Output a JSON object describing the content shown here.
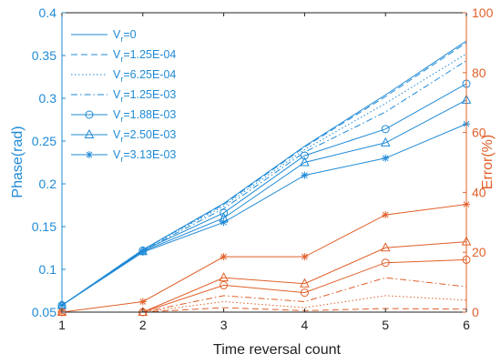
{
  "chart_data": {
    "type": "line",
    "title": "",
    "xlabel": "Time reversal count",
    "ylabel_left": "Phase(rad)",
    "ylabel_right": "Error(%)",
    "x": [
      1,
      2,
      3,
      4,
      5,
      6
    ],
    "xlim": [
      1,
      6
    ],
    "ylim_left": [
      0.05,
      0.4
    ],
    "ylim_right": [
      0,
      100
    ],
    "x_ticks": [
      "1",
      "2",
      "3",
      "4",
      "5",
      "6"
    ],
    "y_left_ticks": [
      "0.05",
      "0.1",
      "0.15",
      "0.2",
      "0.25",
      "0.3",
      "0.35",
      "0.4"
    ],
    "y_right_ticks": [
      "0",
      "20",
      "40",
      "60",
      "80",
      "100"
    ],
    "legend_position": "top-left",
    "colors": {
      "phase": "#1f8ad6",
      "error": "#e0602a",
      "axis": "#222222"
    },
    "series": [
      {
        "legend_main": "V",
        "legend_sub": "r",
        "legend_value": "=0",
        "dash": "solid",
        "marker": "none",
        "phase": [
          0.058,
          0.123,
          0.177,
          0.244,
          0.304,
          0.367
        ],
        "error": [
          0,
          0,
          0,
          0,
          0,
          0
        ]
      },
      {
        "legend_main": "V",
        "legend_sub": "r",
        "legend_value": "=1.25E-04",
        "dash": "dashed",
        "marker": "none",
        "phase": [
          0.058,
          0.123,
          0.176,
          0.243,
          0.302,
          0.365
        ],
        "error": [
          0,
          0,
          1.5,
          0.5,
          1.2,
          1.0
        ]
      },
      {
        "legend_main": "V",
        "legend_sub": "r",
        "legend_value": "=6.25E-04",
        "dash": "dotted",
        "marker": "none",
        "phase": [
          0.058,
          0.123,
          0.174,
          0.24,
          0.294,
          0.352
        ],
        "error": [
          0,
          0,
          3.5,
          1.5,
          5.5,
          4.0
        ]
      },
      {
        "legend_main": "V",
        "legend_sub": "r",
        "legend_value": "=1.25E-03",
        "dash": "dashdot",
        "marker": "none",
        "phase": [
          0.058,
          0.122,
          0.171,
          0.237,
          0.284,
          0.344
        ],
        "error": [
          0,
          0,
          5.5,
          3.5,
          11.5,
          8.5
        ]
      },
      {
        "legend_main": "V",
        "legend_sub": "r",
        "legend_value": "=1.88E-03",
        "dash": "solid",
        "marker": "circle",
        "phase": [
          0.058,
          0.122,
          0.166,
          0.233,
          0.264,
          0.317
        ],
        "error": [
          0,
          0,
          9.0,
          6.5,
          16.5,
          17.5
        ]
      },
      {
        "legend_main": "V",
        "legend_sub": "r",
        "legend_value": "=2.50E-03",
        "dash": "solid",
        "marker": "triangle",
        "phase": [
          0.058,
          0.121,
          0.16,
          0.225,
          0.248,
          0.298
        ],
        "error": [
          0,
          0,
          11.5,
          9.5,
          21.5,
          23.5
        ]
      },
      {
        "legend_main": "V",
        "legend_sub": "r",
        "legend_value": "=3.13E-03",
        "dash": "solid",
        "marker": "star",
        "phase": [
          0.058,
          0.12,
          0.155,
          0.21,
          0.23,
          0.27
        ],
        "error": [
          0,
          3.5,
          18.5,
          18.5,
          32.5,
          36.0
        ]
      }
    ]
  }
}
